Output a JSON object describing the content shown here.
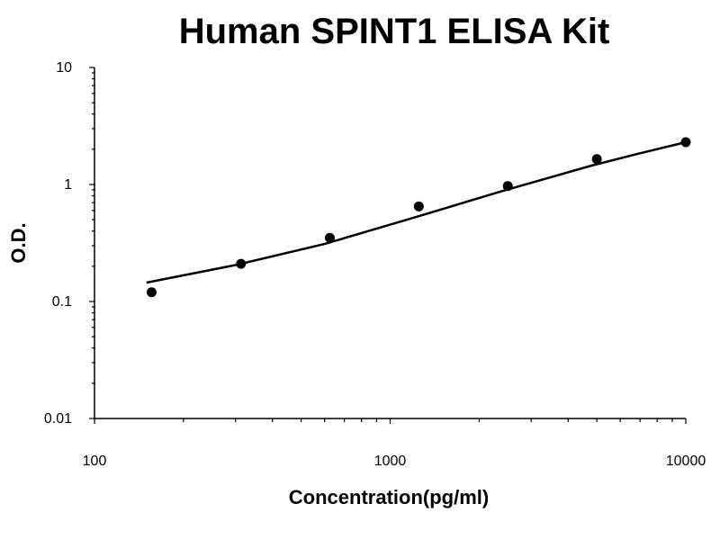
{
  "chart_data": {
    "type": "scatter",
    "title": "Human SPINT1 ELISA Kit",
    "xlabel": "Concentration(pg/ml)",
    "ylabel": "O.D.",
    "x_scale": "log",
    "y_scale": "log",
    "xlim": [
      100,
      10000
    ],
    "ylim": [
      0.01,
      10
    ],
    "x_ticks": [
      "100",
      "1000",
      "10000"
    ],
    "y_ticks": [
      "10",
      "1",
      "0.1",
      "0.01"
    ],
    "grid": false,
    "legend": "none",
    "series": [
      {
        "x": [
          156,
          313,
          625,
          1250,
          2500,
          5000,
          10000
        ],
        "y": [
          0.12,
          0.21,
          0.35,
          0.65,
          0.97,
          1.65,
          2.3
        ]
      }
    ],
    "fit_curve": {
      "x": [
        150,
        300,
        600,
        1200,
        2400,
        4800,
        7000,
        10000
      ],
      "y": [
        0.145,
        0.205,
        0.31,
        0.52,
        0.88,
        1.45,
        1.85,
        2.3
      ]
    }
  }
}
